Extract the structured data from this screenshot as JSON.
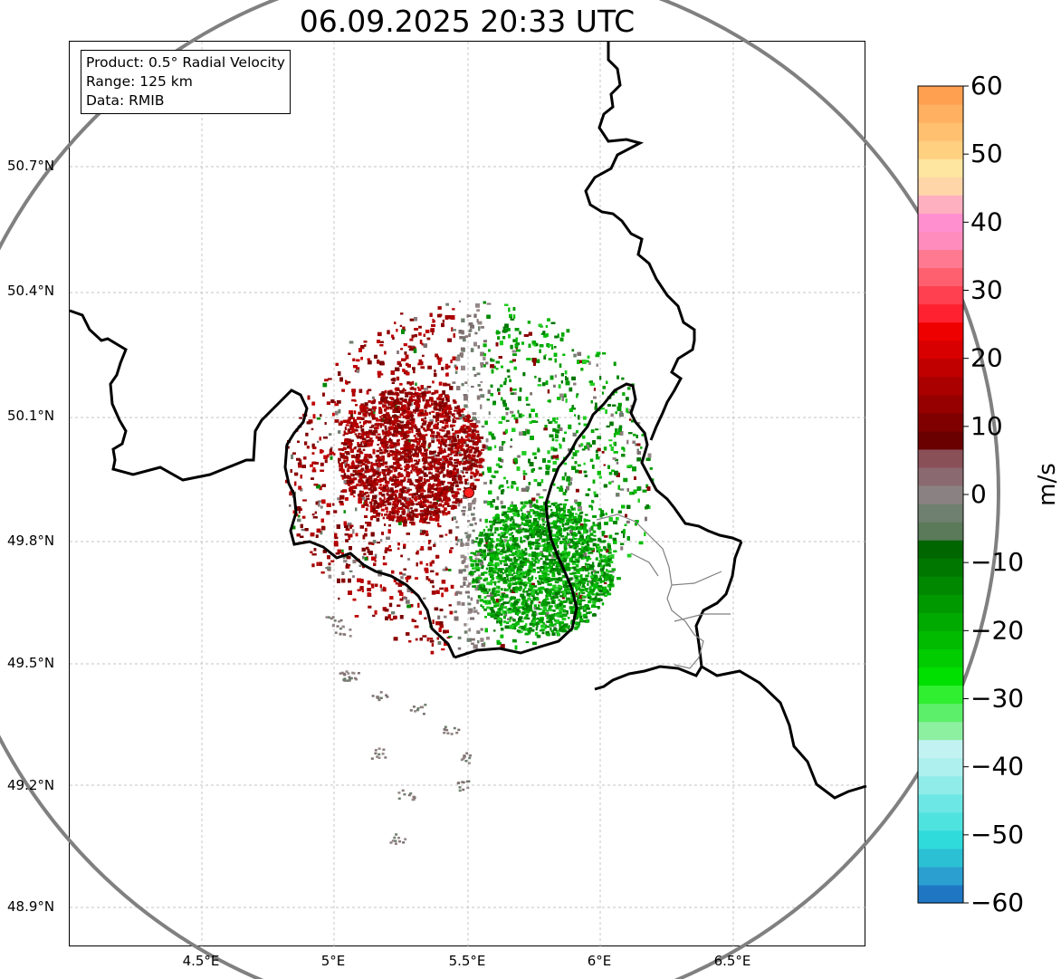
{
  "title": "06.09.2025 20:33 UTC",
  "info": {
    "product": "Product: 0.5° Radial Velocity",
    "range": "Range: 125 km",
    "data": "Data: RMIB"
  },
  "lat_ticks": [
    "50.7°N",
    "50.4°N",
    "50.1°N",
    "49.8°N",
    "49.5°N",
    "49.2°N",
    "48.9°N"
  ],
  "lon_ticks": [
    "4.5°E",
    "5°E",
    "5.5°E",
    "6°E",
    "6.5°E"
  ],
  "colorbar": {
    "unit": "m/s",
    "ticks": [
      "60",
      "50",
      "40",
      "30",
      "20",
      "10",
      "0",
      "−10",
      "−20",
      "−30",
      "−40",
      "−50",
      "−60"
    ],
    "range": [
      -60,
      60
    ],
    "colors": [
      "#1f77c4",
      "#2a9fd0",
      "#2cc0d4",
      "#30dbdb",
      "#4fe3e0",
      "#6de7e5",
      "#8fece9",
      "#aef0ee",
      "#c2f3f2",
      "#8cf0a0",
      "#5cf06a",
      "#30ee30",
      "#00e000",
      "#00cc00",
      "#00bb00",
      "#00aa00",
      "#009900",
      "#008800",
      "#007800",
      "#006600",
      "#5a7a5a",
      "#708070",
      "#8a8282",
      "#8a6a70",
      "#8a5058",
      "#6a0000",
      "#800000",
      "#960000",
      "#aa0000",
      "#c00000",
      "#d80000",
      "#ee0000",
      "#ff2030",
      "#ff4050",
      "#ff6070",
      "#ff7a90",
      "#ff8cbc",
      "#ff8fce",
      "#ffb0c0",
      "#ffd6a8",
      "#ffe6a0",
      "#ffd080",
      "#ffc070",
      "#ffb060",
      "#ffa050"
    ]
  },
  "radar_site": {
    "lon": 5.505,
    "lat": 49.914,
    "color": "#ff2020"
  },
  "range_circle_km": 125,
  "colors": {
    "approaching": "#00a000",
    "receding": "#a00000",
    "near_zero": "#8a7a7a",
    "border": "#000000",
    "range_ring": "#808080"
  }
}
